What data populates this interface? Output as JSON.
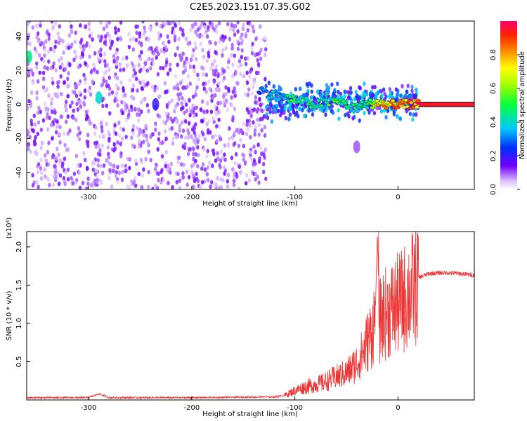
{
  "title": "C2E5.2023.151.07.35.G02",
  "chart_data": [
    {
      "type": "heatmap",
      "xlabel": "Height of straight line (km)",
      "ylabel": "Frequency (Hz)",
      "xlim": [
        -360,
        74
      ],
      "ylim": [
        -50,
        49
      ],
      "xticks": [
        -300,
        -200,
        -100,
        0
      ],
      "yticks": [
        -40,
        -20,
        0,
        20,
        40
      ],
      "colorbar": {
        "label": "Normalized spectral amplitude",
        "range": [
          0,
          1
        ],
        "ticks": [
          "0.0",
          "0.2",
          "0.4",
          "0.6",
          "0.8"
        ],
        "tick_values": [
          0.0,
          0.2,
          0.4,
          0.6,
          0.8
        ]
      },
      "regions": [
        {
          "x": [
            -360,
            -128
          ],
          "y": [
            -50,
            49
          ],
          "amplitude": 0.12
        },
        {
          "x": [
            -128,
            20
          ],
          "y": [
            -12,
            18
          ],
          "amplitude": 0.35
        },
        {
          "x": [
            20,
            74
          ],
          "y": [
            -1.5,
            1.5
          ],
          "amplitude": 0.95
        }
      ],
      "ridge": {
        "x": [
          -135,
          -120,
          -100,
          -80,
          -60,
          -40,
          -30,
          -20,
          -10,
          0,
          10,
          20,
          74
        ],
        "y": [
          9,
          5,
          3,
          0,
          2,
          -2,
          0,
          1,
          0,
          0,
          0,
          0,
          0
        ],
        "amplitude": [
          0.3,
          0.4,
          0.5,
          0.45,
          0.55,
          0.45,
          0.5,
          0.8,
          0.8,
          0.85,
          0.9,
          0.95,
          0.95
        ]
      },
      "hotspots": [
        {
          "x": -358,
          "y": 28,
          "amplitude": 0.45
        },
        {
          "x": -290,
          "y": 4,
          "amplitude": 0.4
        },
        {
          "x": -235,
          "y": 0,
          "amplitude": 0.2
        },
        {
          "x": -40,
          "y": -25,
          "amplitude": 0.1
        }
      ],
      "grid": false
    },
    {
      "type": "line",
      "xlabel": "Height of straight line (km)",
      "ylabel": "SNR (10 * v/v)",
      "y_multiplier": "(x10⁴)",
      "xlim": [
        -360,
        74
      ],
      "ylim": [
        0,
        2.2
      ],
      "xticks": [
        -300,
        -200,
        -100,
        0
      ],
      "yticks": [
        0.5,
        1.0,
        1.5,
        2.0
      ],
      "ytick_labels": [
        "0.5",
        "1.0",
        "1.5",
        "2.0"
      ],
      "color": "#ee3333",
      "series": [
        {
          "x": [
            -360,
            -300,
            -290,
            -280,
            -200,
            -120,
            -110,
            -100,
            -90,
            -80,
            -70,
            -60,
            -50,
            -40,
            -35,
            -30,
            -25,
            -22,
            -20,
            -18,
            -15,
            -10,
            -5,
            0,
            5,
            10,
            15,
            20,
            30,
            40,
            50,
            60,
            74
          ],
          "y": [
            0.03,
            0.03,
            0.08,
            0.03,
            0.03,
            0.04,
            0.06,
            0.12,
            0.17,
            0.2,
            0.24,
            0.3,
            0.35,
            0.48,
            0.6,
            0.75,
            0.9,
            1.1,
            2.2,
            1.0,
            1.1,
            1.15,
            1.2,
            1.25,
            1.3,
            1.4,
            1.45,
            1.6,
            1.65,
            1.66,
            1.66,
            1.65,
            1.63
          ]
        }
      ],
      "grid": false
    }
  ]
}
